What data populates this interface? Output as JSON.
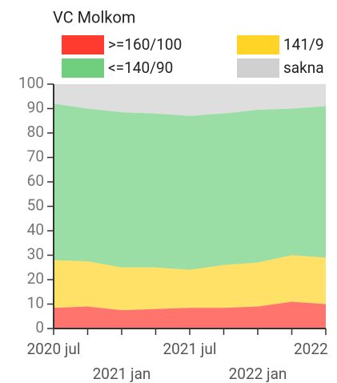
{
  "chart_data": {
    "type": "stacked_area",
    "title": "VC Molkom",
    "categories": [
      "2020 jul",
      null,
      "2021 jan",
      null,
      "2021 jul",
      null,
      "2022 jan",
      null,
      "2022"
    ],
    "series": [
      {
        "name": ">=160/100",
        "color": "#ff3b30",
        "values": [
          8.5,
          9,
          7.5,
          8,
          8.5,
          8.5,
          9,
          11,
          10
        ]
      },
      {
        "name": "141/9",
        "color": "#ffd426",
        "values": [
          19.5,
          18.5,
          17.5,
          17,
          15.5,
          17.5,
          18,
          19,
          19
        ]
      },
      {
        "name": "<=140/90",
        "color": "#6fcf7f",
        "values": [
          64,
          62.5,
          63.5,
          63,
          63,
          62,
          62.5,
          60,
          62
        ]
      },
      {
        "name": "sakna",
        "color": "#d0d0d0",
        "values": [
          8,
          10,
          11.5,
          12,
          13,
          12,
          10.5,
          10,
          9
        ]
      }
    ],
    "ylim": [
      0,
      100
    ],
    "yticks": [
      0,
      10,
      20,
      30,
      40,
      50,
      60,
      70,
      80,
      90,
      100
    ],
    "grid": false
  }
}
